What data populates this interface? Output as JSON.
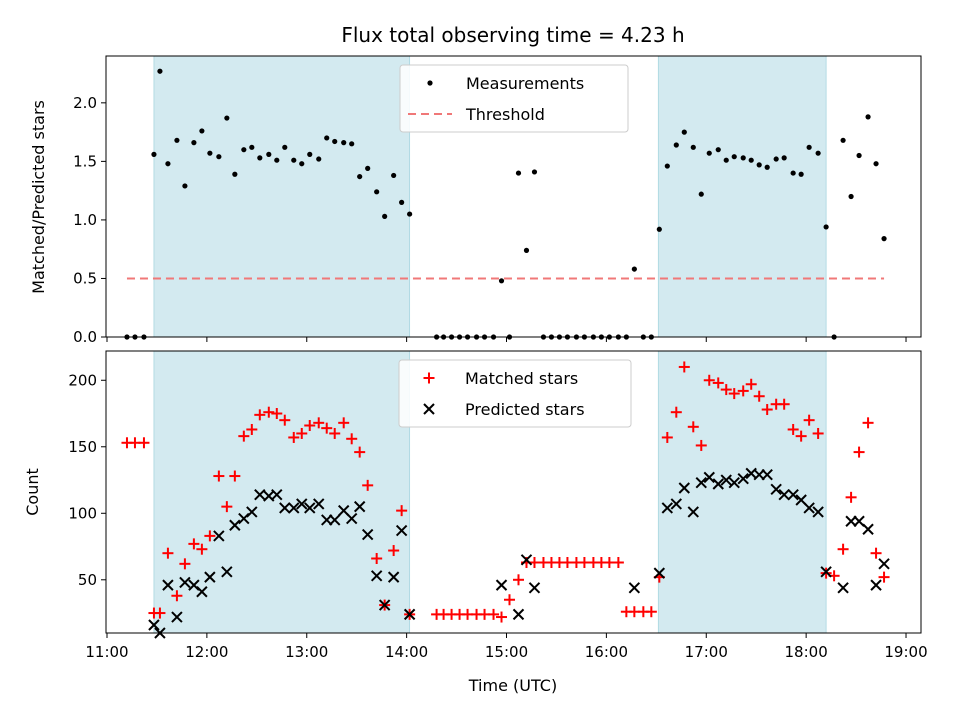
{
  "title": "Flux total observing time = 4.23 h",
  "xlabel": "Time (UTC)",
  "x_ticks": [
    "11:00",
    "12:00",
    "13:00",
    "14:00",
    "15:00",
    "16:00",
    "17:00",
    "18:00",
    "19:00"
  ],
  "colors": {
    "shade": "#d3eaf0",
    "threshold": "#f07878",
    "matched": "#ff0000",
    "predicted": "#000000",
    "measurement": "#000000"
  },
  "chart_data": [
    {
      "type": "scatter",
      "ylabel": "Matched/Predicted stars",
      "xlim": [
        10.99,
        19.15
      ],
      "ylim": [
        0,
        2.4
      ],
      "y_ticks": [
        "0.0",
        "0.5",
        "1.0",
        "1.5",
        "2.0"
      ],
      "y_tick_values": [
        0,
        0.5,
        1.0,
        1.5,
        2.0
      ],
      "shaded_intervals": [
        [
          11.47,
          14.03
        ],
        [
          16.52,
          18.2
        ]
      ],
      "threshold": {
        "name": "Threshold",
        "y": 0.5,
        "x_range": [
          11.2,
          18.78
        ]
      },
      "legend": {
        "placement": "upper center",
        "entries": [
          "Measurements",
          "Threshold"
        ]
      },
      "series": [
        {
          "name": "Measurements",
          "x": [
            11.2,
            11.28,
            11.37,
            11.47,
            11.53,
            11.61,
            11.7,
            11.78,
            11.87,
            11.95,
            12.03,
            12.12,
            12.2,
            12.28,
            12.37,
            12.45,
            12.53,
            12.62,
            12.7,
            12.78,
            12.87,
            12.95,
            13.03,
            13.12,
            13.2,
            13.28,
            13.37,
            13.45,
            13.53,
            13.61,
            13.7,
            13.78,
            13.87,
            13.95,
            14.03,
            14.3,
            14.37,
            14.45,
            14.53,
            14.61,
            14.7,
            14.78,
            14.87,
            14.95,
            15.03,
            15.12,
            15.2,
            15.28,
            15.37,
            15.45,
            15.53,
            15.61,
            15.7,
            15.78,
            15.87,
            15.95,
            16.03,
            16.12,
            16.2,
            16.28,
            16.37,
            16.45,
            16.53,
            16.61,
            16.7,
            16.78,
            16.87,
            16.95,
            17.03,
            17.12,
            17.2,
            17.28,
            17.37,
            17.45,
            17.53,
            17.61,
            17.7,
            17.78,
            17.87,
            17.95,
            18.03,
            18.12,
            18.2,
            18.28,
            18.37,
            18.45,
            18.53,
            18.62,
            18.7,
            18.78
          ],
          "y": [
            0,
            0,
            0,
            1.56,
            2.27,
            1.48,
            1.68,
            1.29,
            1.66,
            1.76,
            1.57,
            1.54,
            1.87,
            1.39,
            1.6,
            1.62,
            1.53,
            1.56,
            1.51,
            1.62,
            1.51,
            1.48,
            1.56,
            1.52,
            1.7,
            1.67,
            1.66,
            1.65,
            1.37,
            1.44,
            1.24,
            1.03,
            1.38,
            1.15,
            1.05,
            0,
            0,
            0,
            0,
            0,
            0,
            0,
            0,
            0.48,
            0,
            1.4,
            0.74,
            1.41,
            0,
            0,
            0,
            0,
            0,
            0,
            0,
            0,
            0,
            0,
            0,
            0.58,
            0,
            0,
            0.92,
            1.46,
            1.64,
            1.75,
            1.62,
            1.22,
            1.57,
            1.6,
            1.51,
            1.54,
            1.53,
            1.51,
            1.47,
            1.45,
            1.52,
            1.53,
            1.4,
            1.39,
            1.62,
            1.57,
            0.94,
            0,
            1.68,
            1.2,
            1.55,
            1.88,
            1.48,
            0.84
          ]
        }
      ]
    },
    {
      "type": "scatter",
      "ylabel": "Count",
      "xlabel": "Time (UTC)",
      "xlim": [
        10.99,
        19.15
      ],
      "ylim": [
        10,
        222
      ],
      "y_ticks": [
        "50",
        "100",
        "150",
        "200"
      ],
      "y_tick_values": [
        50,
        100,
        150,
        200
      ],
      "shaded_intervals": [
        [
          11.47,
          14.03
        ],
        [
          16.52,
          18.2
        ]
      ],
      "legend": {
        "placement": "upper center",
        "entries": [
          "Matched stars",
          "Predicted stars"
        ]
      },
      "series": [
        {
          "name": "Matched stars",
          "x": [
            11.2,
            11.28,
            11.37,
            11.47,
            11.53,
            11.61,
            11.7,
            11.78,
            11.87,
            11.95,
            12.03,
            12.12,
            12.2,
            12.28,
            12.37,
            12.45,
            12.53,
            12.62,
            12.7,
            12.78,
            12.87,
            12.95,
            13.03,
            13.12,
            13.2,
            13.28,
            13.37,
            13.45,
            13.53,
            13.61,
            13.7,
            13.78,
            13.87,
            13.95,
            14.03,
            14.3,
            14.37,
            14.45,
            14.53,
            14.61,
            14.7,
            14.78,
            14.87,
            14.95,
            15.03,
            15.12,
            15.2,
            15.28,
            15.37,
            15.45,
            15.53,
            15.61,
            15.7,
            15.78,
            15.87,
            15.95,
            16.03,
            16.12,
            16.2,
            16.28,
            16.37,
            16.45,
            16.53,
            16.61,
            16.7,
            16.78,
            16.87,
            16.95,
            17.03,
            17.12,
            17.2,
            17.28,
            17.37,
            17.45,
            17.53,
            17.61,
            17.7,
            17.78,
            17.87,
            17.95,
            18.03,
            18.12,
            18.2,
            18.28,
            18.37,
            18.45,
            18.53,
            18.62,
            18.7,
            18.78
          ],
          "y": [
            153,
            153,
            153,
            25,
            25,
            70,
            38,
            62,
            77,
            73,
            83,
            128,
            105,
            128,
            158,
            163,
            174,
            176,
            175,
            170,
            157,
            160,
            166,
            168,
            164,
            160,
            168,
            156,
            146,
            121,
            66,
            31,
            72,
            102,
            24,
            24,
            24,
            24,
            24,
            24,
            24,
            24,
            24,
            22,
            35,
            50,
            63,
            63,
            63,
            63,
            63,
            63,
            63,
            63,
            63,
            63,
            63,
            63,
            26,
            26,
            26,
            26,
            52,
            157,
            176,
            210,
            165,
            151,
            200,
            198,
            193,
            190,
            192,
            197,
            188,
            178,
            182,
            182,
            163,
            158,
            170,
            160,
            55,
            53,
            73,
            112,
            146,
            168,
            70,
            52
          ]
        },
        {
          "name": "Predicted stars",
          "x": [
            11.47,
            11.53,
            11.61,
            11.7,
            11.78,
            11.87,
            11.95,
            12.03,
            12.12,
            12.2,
            12.28,
            12.37,
            12.45,
            12.53,
            12.62,
            12.7,
            12.78,
            12.87,
            12.95,
            13.03,
            13.12,
            13.2,
            13.28,
            13.37,
            13.45,
            13.53,
            13.61,
            13.7,
            13.78,
            13.87,
            13.95,
            14.03,
            14.95,
            15.12,
            15.2,
            15.28,
            16.28,
            16.53,
            16.61,
            16.7,
            16.78,
            16.87,
            16.95,
            17.03,
            17.12,
            17.2,
            17.28,
            17.37,
            17.45,
            17.53,
            17.61,
            17.7,
            17.78,
            17.87,
            17.95,
            18.03,
            18.12,
            18.2,
            18.37,
            18.45,
            18.53,
            18.62,
            18.7,
            18.78
          ],
          "y": [
            16,
            10,
            46,
            22,
            48,
            46,
            41,
            52,
            83,
            56,
            91,
            96,
            101,
            114,
            113,
            114,
            104,
            104,
            107,
            104,
            107,
            95,
            95,
            102,
            96,
            105,
            84,
            53,
            31,
            52,
            87,
            24,
            46,
            24,
            65,
            44,
            44,
            55,
            104,
            107,
            119,
            101,
            123,
            127,
            122,
            125,
            123,
            126,
            130,
            129,
            129,
            118,
            114,
            114,
            110,
            104,
            101,
            56,
            44,
            94,
            94,
            88,
            46,
            62
          ]
        }
      ]
    }
  ]
}
